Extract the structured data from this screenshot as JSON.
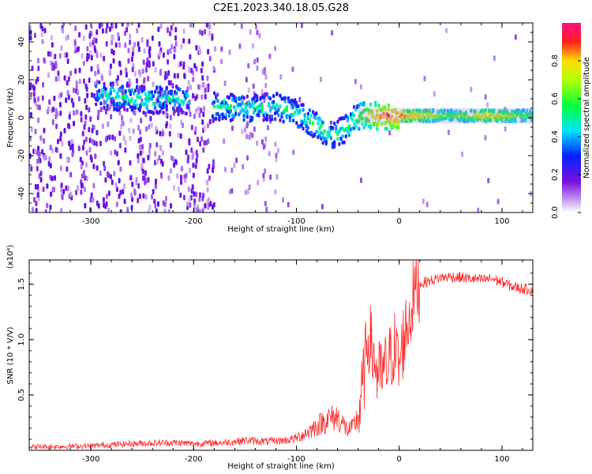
{
  "title": "C2E1.2023.340.18.05.G28",
  "chart_data": [
    {
      "type": "heatmap",
      "xlabel": "Height of straight line (km)",
      "ylabel": "Frequency (Hz)",
      "xlim": [
        -360,
        130
      ],
      "ylim": [
        -50,
        50
      ],
      "xticks": [
        -300,
        -200,
        -100,
        0,
        100
      ],
      "yticks": [
        -40,
        -20,
        0,
        20,
        40
      ],
      "colorbar": {
        "label": "Normalized spectral amplitude",
        "range": [
          0,
          1
        ],
        "ticks": [
          "0.0",
          "0.2",
          "0.4",
          "0.6",
          "0.8"
        ],
        "colors": [
          "#ffffff",
          "#8a2be2",
          "#0000ff",
          "#00ffff",
          "#00ff00",
          "#ffff00",
          "#ff0000",
          "#ff00aa"
        ]
      },
      "ridge": [
        {
          "x": -290,
          "y": 12,
          "a": 0.45
        },
        {
          "x": -260,
          "y": 10,
          "a": 0.5
        },
        {
          "x": -240,
          "y": 9,
          "a": 0.5
        },
        {
          "x": -215,
          "y": 10,
          "a": 0.45
        },
        {
          "x": -180,
          "y": 6,
          "a": 0.5
        },
        {
          "x": -150,
          "y": 5,
          "a": 0.5
        },
        {
          "x": -120,
          "y": 6,
          "a": 0.5
        },
        {
          "x": -100,
          "y": 2,
          "a": 0.55
        },
        {
          "x": -80,
          "y": -4,
          "a": 0.55
        },
        {
          "x": -65,
          "y": -10,
          "a": 0.5
        },
        {
          "x": -50,
          "y": -5,
          "a": 0.55
        },
        {
          "x": -40,
          "y": 1,
          "a": 0.6
        },
        {
          "x": -20,
          "y": 1,
          "a": 0.85
        },
        {
          "x": 0,
          "y": 1,
          "a": 0.9
        },
        {
          "x": 50,
          "y": 1,
          "a": 0.6
        },
        {
          "x": 85,
          "y": 1,
          "a": 0.8
        },
        {
          "x": 130,
          "y": 1,
          "a": 0.6
        }
      ]
    },
    {
      "type": "line",
      "xlabel": "Height of straight line (km)",
      "ylabel": "SNR (10 * V/V)",
      "scale_label": "(x10⁴)",
      "xlim": [
        -360,
        130
      ],
      "ylim": [
        0,
        1.72
      ],
      "xticks": [
        -300,
        -200,
        -100,
        0,
        100
      ],
      "yticks": [
        0.5,
        1.0,
        1.5
      ],
      "ytick_labels": [
        "0.5",
        "1.0",
        "1.5"
      ],
      "series": [
        {
          "color": "#ff2a2a",
          "x": [
            -360,
            -300,
            -260,
            -220,
            -200,
            -170,
            -150,
            -130,
            -110,
            -100,
            -90,
            -80,
            -70,
            -60,
            -50,
            -45,
            -40,
            -35,
            -30,
            -25,
            -20,
            -15,
            -10,
            -5,
            0,
            5,
            10,
            15,
            20,
            25,
            30,
            40,
            50,
            60,
            70,
            80,
            90,
            100,
            110,
            120,
            130
          ],
          "y": [
            0.03,
            0.04,
            0.06,
            0.07,
            0.06,
            0.07,
            0.09,
            0.08,
            0.09,
            0.11,
            0.16,
            0.22,
            0.28,
            0.3,
            0.18,
            0.2,
            0.3,
            0.6,
            1.05,
            0.85,
            0.65,
            0.7,
            0.78,
            0.95,
            0.75,
            1.05,
            1.2,
            1.45,
            1.5,
            1.52,
            1.53,
            1.56,
            1.57,
            1.56,
            1.55,
            1.54,
            1.55,
            1.52,
            1.48,
            1.46,
            1.45
          ]
        }
      ]
    }
  ]
}
